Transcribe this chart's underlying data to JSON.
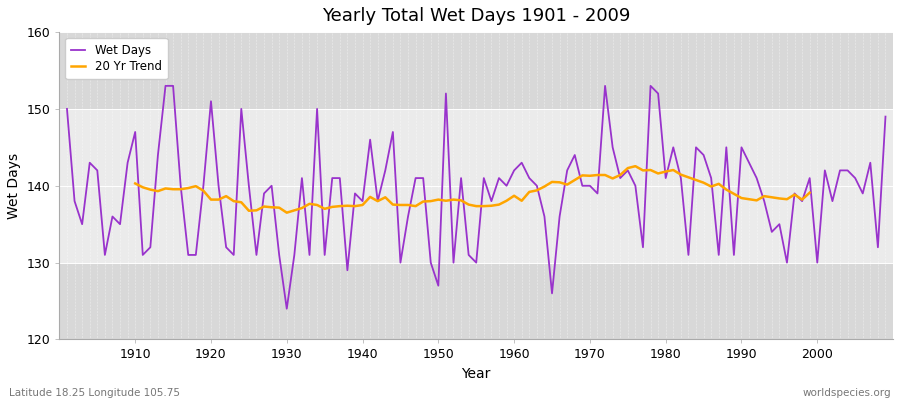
{
  "title": "Yearly Total Wet Days 1901 - 2009",
  "xlabel": "Year",
  "ylabel": "Wet Days",
  "bottom_left_label": "Latitude 18.25 Longitude 105.75",
  "bottom_right_label": "worldspecies.org",
  "ylim": [
    120,
    160
  ],
  "yticks": [
    120,
    130,
    140,
    150,
    160
  ],
  "wet_days_color": "#9933cc",
  "trend_color": "#ffa500",
  "figure_bg_color": "#ffffff",
  "plot_bg_light": "#ebebeb",
  "plot_bg_dark": "#d8d8d8",
  "legend_labels": [
    "Wet Days",
    "20 Yr Trend"
  ],
  "trend_window": 20,
  "years": [
    1901,
    1902,
    1903,
    1904,
    1905,
    1906,
    1907,
    1908,
    1909,
    1910,
    1911,
    1912,
    1913,
    1914,
    1915,
    1916,
    1917,
    1918,
    1919,
    1920,
    1921,
    1922,
    1923,
    1924,
    1925,
    1926,
    1927,
    1928,
    1929,
    1930,
    1931,
    1932,
    1933,
    1934,
    1935,
    1936,
    1937,
    1938,
    1939,
    1940,
    1941,
    1942,
    1943,
    1944,
    1945,
    1946,
    1947,
    1948,
    1949,
    1950,
    1951,
    1952,
    1953,
    1954,
    1955,
    1956,
    1957,
    1958,
    1959,
    1960,
    1961,
    1962,
    1963,
    1964,
    1965,
    1966,
    1967,
    1968,
    1969,
    1970,
    1971,
    1972,
    1973,
    1974,
    1975,
    1976,
    1977,
    1978,
    1979,
    1980,
    1981,
    1982,
    1983,
    1984,
    1985,
    1986,
    1987,
    1988,
    1989,
    1990,
    1991,
    1992,
    1993,
    1994,
    1995,
    1996,
    1997,
    1998,
    1999,
    2000,
    2001,
    2002,
    2003,
    2004,
    2005,
    2006,
    2007,
    2008,
    2009
  ],
  "wet_days": [
    150,
    138,
    135,
    143,
    142,
    131,
    136,
    135,
    143,
    147,
    131,
    132,
    144,
    153,
    153,
    140,
    131,
    131,
    140,
    151,
    140,
    132,
    131,
    150,
    140,
    131,
    139,
    140,
    131,
    124,
    131,
    141,
    131,
    150,
    131,
    141,
    141,
    129,
    139,
    138,
    146,
    138,
    142,
    147,
    130,
    136,
    141,
    141,
    130,
    127,
    152,
    130,
    141,
    131,
    130,
    141,
    138,
    141,
    140,
    142,
    143,
    141,
    140,
    136,
    126,
    136,
    142,
    144,
    140,
    140,
    139,
    153,
    145,
    141,
    142,
    140,
    132,
    153,
    152,
    141,
    145,
    141,
    131,
    145,
    144,
    141,
    131,
    145,
    131,
    145,
    143,
    141,
    138,
    134,
    135,
    130,
    139,
    138,
    141,
    130,
    142,
    138,
    142,
    142,
    141,
    139,
    143,
    132,
    149
  ]
}
